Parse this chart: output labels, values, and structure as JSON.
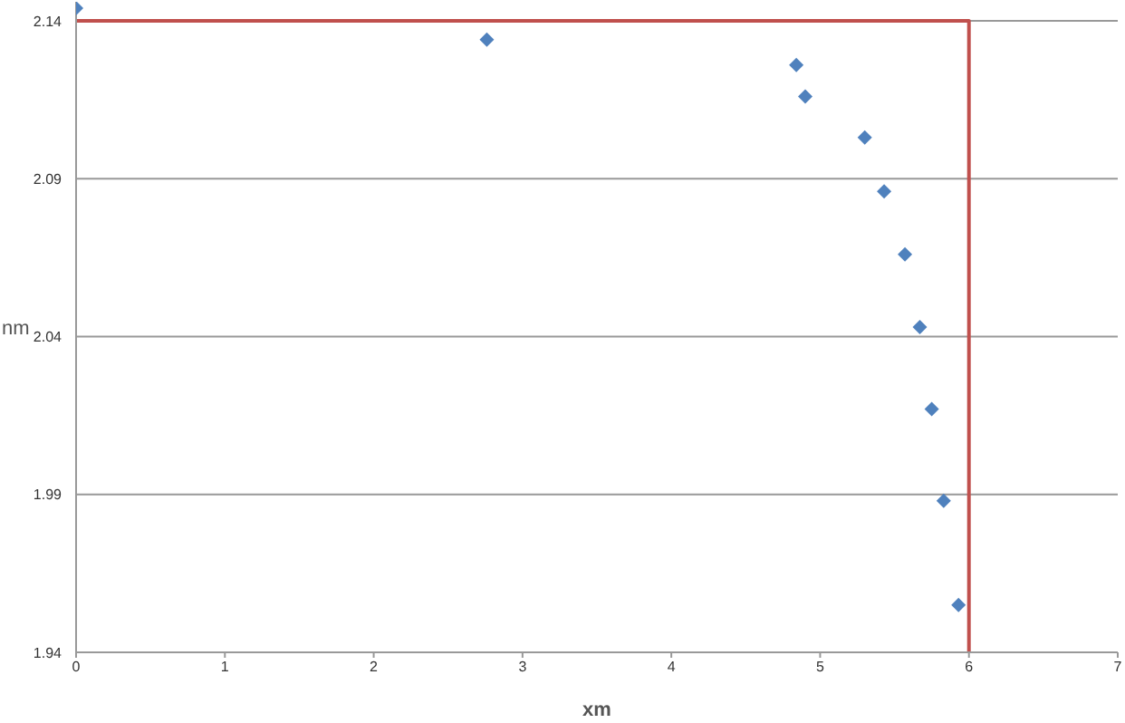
{
  "chart_data": {
    "type": "scatter",
    "xlabel": "xm",
    "ylabel": "nm",
    "xlim": [
      0,
      7
    ],
    "xticks": [
      0,
      1,
      2,
      3,
      4,
      5,
      6,
      7
    ],
    "ylim": [
      1.94,
      2.146
    ],
    "yticks": [
      1.94,
      1.99,
      2.04,
      2.09,
      2.14
    ],
    "grid": "y",
    "marker": "diamond",
    "legend": false,
    "series": [
      {
        "color": "#4f81bd",
        "x": [
          0,
          2.76,
          4.84,
          4.9,
          5.3,
          5.43,
          5.57,
          5.67,
          5.75,
          5.83,
          5.93
        ],
        "values": [
          2.144,
          2.134,
          2.126,
          2.116,
          2.103,
          2.086,
          2.066,
          2.043,
          2.017,
          1.988,
          1.955
        ]
      },
      {
        "type": "line",
        "color": "#c0504d",
        "marker": "none",
        "line_style": "solid",
        "x": [
          0,
          6,
          6
        ],
        "values": [
          2.14,
          2.14,
          1.94
        ]
      }
    ]
  }
}
